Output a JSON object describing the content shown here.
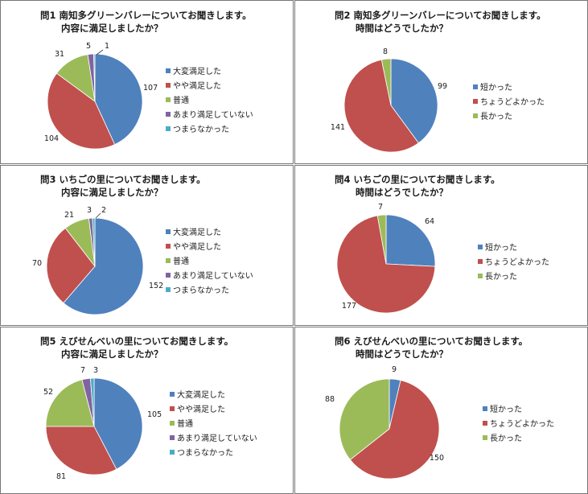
{
  "colors": {
    "blue": "#4F81BD",
    "red": "#C0504D",
    "green": "#9BBB59",
    "purple": "#8064A2",
    "cyan": "#4BACC6",
    "border": "#777777",
    "text": "#1a1a1a"
  },
  "chart_data": [
    {
      "type": "pie",
      "title": [
        "問1 南知多グリーンバレーについてお聞きします。",
        "内容に満足しましたか？"
      ],
      "categories": [
        "大変満足した",
        "やや満足した",
        "普通",
        "あまり満足していない",
        "つまらなかった"
      ],
      "values": [
        107,
        104,
        31,
        5,
        1
      ],
      "legend": "right"
    },
    {
      "type": "pie",
      "title": [
        "問2 南知多グリーンバレーについてお聞きします。",
        "時間はどうでしたか？"
      ],
      "categories": [
        "短かった",
        "ちょうどよかった",
        "長かった"
      ],
      "values": [
        99,
        141,
        8
      ],
      "legend": "right"
    },
    {
      "type": "pie",
      "title": [
        "問3 いちごの里についてお聞きします。",
        "内容に満足しましたか？"
      ],
      "categories": [
        "大変満足した",
        "やや満足した",
        "普通",
        "あまり満足していない",
        "つまらなかった"
      ],
      "values": [
        152,
        70,
        21,
        3,
        2
      ],
      "legend": "right"
    },
    {
      "type": "pie",
      "title": [
        "問4 いちごの里についてお聞きします。",
        "時間はどうでしたか？"
      ],
      "categories": [
        "短かった",
        "ちょうどよかった",
        "長かった"
      ],
      "values": [
        64,
        177,
        7
      ],
      "legend": "right"
    },
    {
      "type": "pie",
      "title": [
        "問5 えびせんべいの里についてお聞きします。",
        "内容に満足しましたか？"
      ],
      "categories": [
        "大変満足した",
        "やや満足した",
        "普通",
        "あまり満足していない",
        "つまらなかった"
      ],
      "values": [
        105,
        81,
        52,
        7,
        3
      ],
      "legend": "right"
    },
    {
      "type": "pie",
      "title": [
        "問6 えびせんべいの里についてお聞きします。",
        "時間はどうでしたか？"
      ],
      "categories": [
        "短かった",
        "ちょうどよかった",
        "長かった"
      ],
      "values": [
        9,
        150,
        88
      ],
      "legend": "right"
    }
  ]
}
